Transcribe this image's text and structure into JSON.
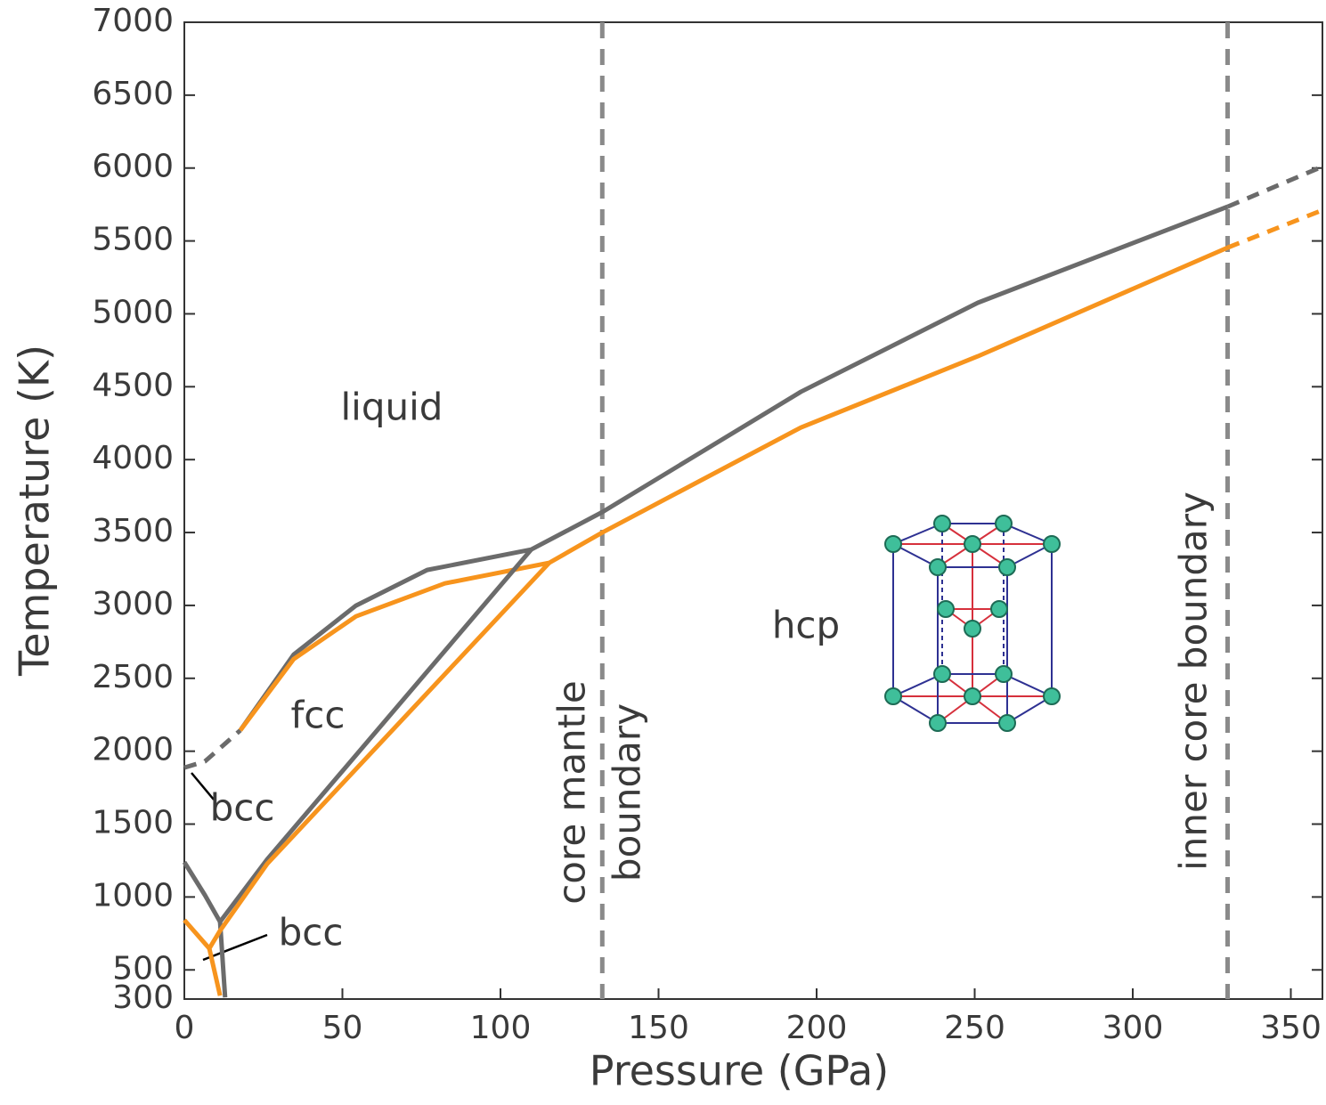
{
  "chart_data": {
    "type": "line",
    "xlabel": "Pressure (GPa)",
    "ylabel": "Temperature (K)",
    "xlim": [
      0,
      360
    ],
    "ylim": [
      300,
      7000
    ],
    "xticks": [
      0,
      50,
      100,
      150,
      200,
      250,
      300,
      350
    ],
    "yticks": [
      300,
      500,
      1000,
      1500,
      2000,
      2500,
      3000,
      3500,
      4000,
      4500,
      5000,
      5500,
      6000,
      6500,
      7000
    ],
    "series": [
      {
        "color": "#6b6b6b",
        "style": "solid",
        "x": [
          17.7,
          34.6,
          54.3,
          76.8,
          109.7,
          132.2,
          195,
          251,
          330
        ],
        "values": [
          2143,
          2663,
          2999,
          3243,
          3383,
          3640,
          4465,
          5076,
          5735
        ]
      },
      {
        "color": "#6b6b6b",
        "style": "dashed",
        "x": [
          330,
          360
        ],
        "values": [
          5735,
          6010
        ]
      },
      {
        "color": "#6b6b6b",
        "style": "dashed",
        "x": [
          0,
          6.5,
          17.7
        ],
        "values": [
          1887,
          1930,
          2143
        ]
      },
      {
        "color": "#f7941d",
        "style": "solid",
        "x": [
          17.7,
          34.6,
          54.3,
          82.4,
          115.4,
          132.2,
          195,
          251,
          330
        ],
        "values": [
          2143,
          2632,
          2925,
          3151,
          3292,
          3500,
          4220,
          4709,
          5454
        ]
      },
      {
        "color": "#f7941d",
        "style": "dashed",
        "x": [
          330,
          360
        ],
        "values": [
          5454,
          5711
        ]
      },
      {
        "color": "#6b6b6b",
        "style": "solid",
        "x": [
          109.7,
          26.2,
          11.3,
          12.9
        ],
        "values": [
          3383,
          1258,
          830,
          311
        ]
      },
      {
        "color": "#6b6b6b",
        "style": "solid",
        "x": [
          0,
          6.5,
          11.3
        ],
        "values": [
          1239,
          1013,
          830
        ]
      },
      {
        "color": "#f7941d",
        "style": "solid",
        "x": [
          115.4,
          26.2,
          11.3,
          7.9,
          11.3
        ],
        "values": [
          3292,
          1227,
          769,
          647,
          323
        ]
      },
      {
        "color": "#f7941d",
        "style": "solid",
        "x": [
          0,
          7.9
        ],
        "values": [
          842,
          647
        ]
      }
    ],
    "vlines": [
      {
        "x": 132.2,
        "label": [
          "core mantle",
          "boundary"
        ]
      },
      {
        "x": 330,
        "label": [
          "inner core boundary"
        ]
      }
    ],
    "annotations": [
      "liquid",
      "fcc",
      "bcc",
      "bcc",
      "hcp"
    ]
  }
}
